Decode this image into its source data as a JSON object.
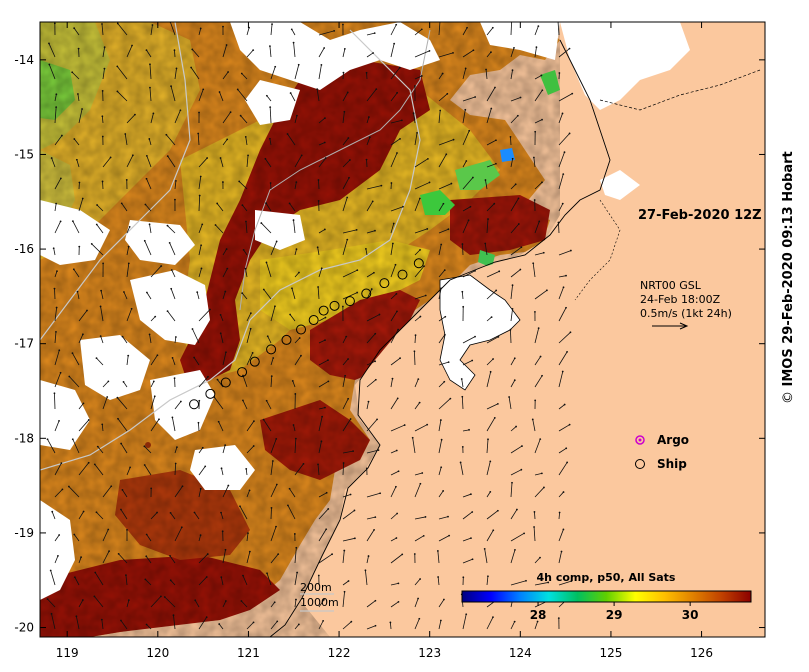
{
  "map": {
    "lon_ticks": [
      "119",
      "120",
      "121",
      "122",
      "123",
      "124",
      "125",
      "126"
    ],
    "lat_ticks": [
      "-14",
      "-15",
      "-16",
      "-17",
      "-18",
      "-19",
      "-20"
    ],
    "lon_range": [
      118.7,
      126.7
    ],
    "lat_range": [
      -13.6,
      -20.1
    ],
    "land_color": "#fbc89e",
    "cloud_color": "#ffffff"
  },
  "annotations": {
    "track_date": "27-Feb-2020 12Z",
    "current_product": "NRT00 GSL",
    "current_time": "24-Feb 18:00Z",
    "current_scale": "0.5m/s (1kt 24h)"
  },
  "legend": {
    "argo_label": "Argo",
    "ship_label": "Ship",
    "argo_color": "#cc00cc"
  },
  "bathymetry": {
    "label_200": "200m",
    "label_1000": "1000m"
  },
  "colorbar": {
    "title": "4h comp, p50, All Sats",
    "ticks": [
      "28",
      "29",
      "30"
    ],
    "tick_values": [
      28,
      29,
      30
    ],
    "range": [
      27.0,
      30.8
    ],
    "colors": [
      "#00007f",
      "#0000ff",
      "#0080ff",
      "#00e0e0",
      "#00c060",
      "#60d000",
      "#ffff00",
      "#ffc000",
      "#e08000",
      "#c04000",
      "#8b0000"
    ]
  },
  "ship_track": [
    {
      "lon": 122.88,
      "lat": -16.15
    },
    {
      "lon": 122.7,
      "lat": -16.27
    },
    {
      "lon": 122.5,
      "lat": -16.36
    },
    {
      "lon": 122.3,
      "lat": -16.47
    },
    {
      "lon": 122.12,
      "lat": -16.55
    },
    {
      "lon": 121.95,
      "lat": -16.6
    },
    {
      "lon": 121.83,
      "lat": -16.65
    },
    {
      "lon": 121.72,
      "lat": -16.75
    },
    {
      "lon": 121.58,
      "lat": -16.85
    },
    {
      "lon": 121.42,
      "lat": -16.96
    },
    {
      "lon": 121.25,
      "lat": -17.06
    },
    {
      "lon": 121.07,
      "lat": -17.19
    },
    {
      "lon": 120.93,
      "lat": -17.3
    },
    {
      "lon": 120.75,
      "lat": -17.41
    },
    {
      "lon": 120.58,
      "lat": -17.53
    },
    {
      "lon": 120.4,
      "lat": -17.64
    }
  ],
  "credit": {
    "symbol": "©",
    "text": "IMOS 29-Feb-2020 09:13 Hobart"
  }
}
